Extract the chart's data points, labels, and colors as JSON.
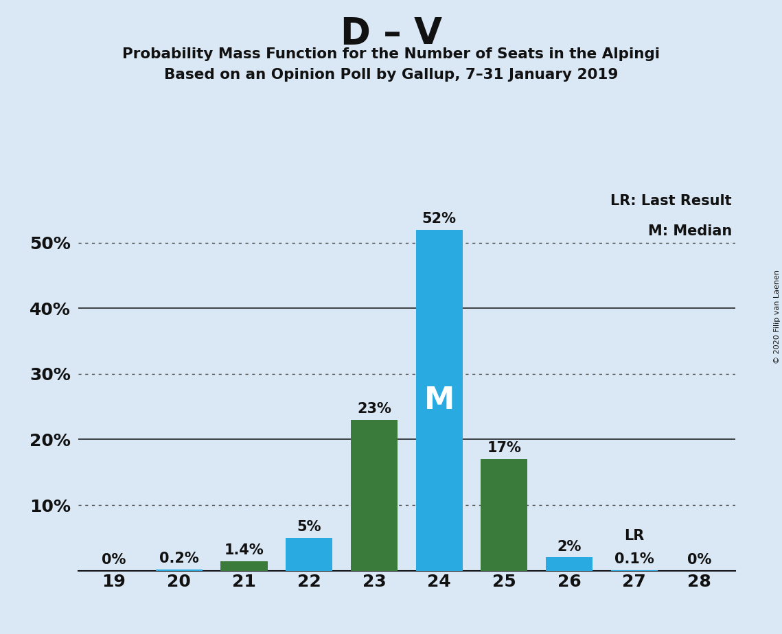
{
  "title": "D – V",
  "subtitle1": "Probability Mass Function for the Number of Seats in the Alpingi",
  "subtitle2": "Based on an Opinion Poll by Gallup, 7–31 January 2019",
  "copyright": "© 2020 Filip van Laenen",
  "seats": [
    19,
    20,
    21,
    22,
    23,
    24,
    25,
    26,
    27,
    28
  ],
  "blue_seats": [
    20,
    22,
    24,
    26,
    27,
    28
  ],
  "blue_values": [
    0.2,
    5,
    52,
    2,
    0.1,
    0
  ],
  "green_seats": [
    19,
    21,
    23,
    25
  ],
  "green_values": [
    0,
    1.4,
    23,
    17
  ],
  "blue_color": "#29ABE2",
  "green_color": "#3A7A3A",
  "background_color": "#DAE8F5",
  "bar_width": 0.72,
  "ylim_max": 58,
  "yticks": [
    10,
    20,
    30,
    40,
    50
  ],
  "median_seat": 24,
  "lr_seat": 27,
  "legend_lr": "LR: Last Result",
  "legend_m": "M: Median",
  "blue_labels": [
    "0.2%",
    "5%",
    "52%",
    "2%",
    "0.1%",
    "0%"
  ],
  "green_labels": [
    "0%",
    "1.4%",
    "23%",
    "17%"
  ],
  "solid_gridlines": [
    20,
    40
  ],
  "dotted_gridlines": [
    10,
    30,
    50
  ]
}
